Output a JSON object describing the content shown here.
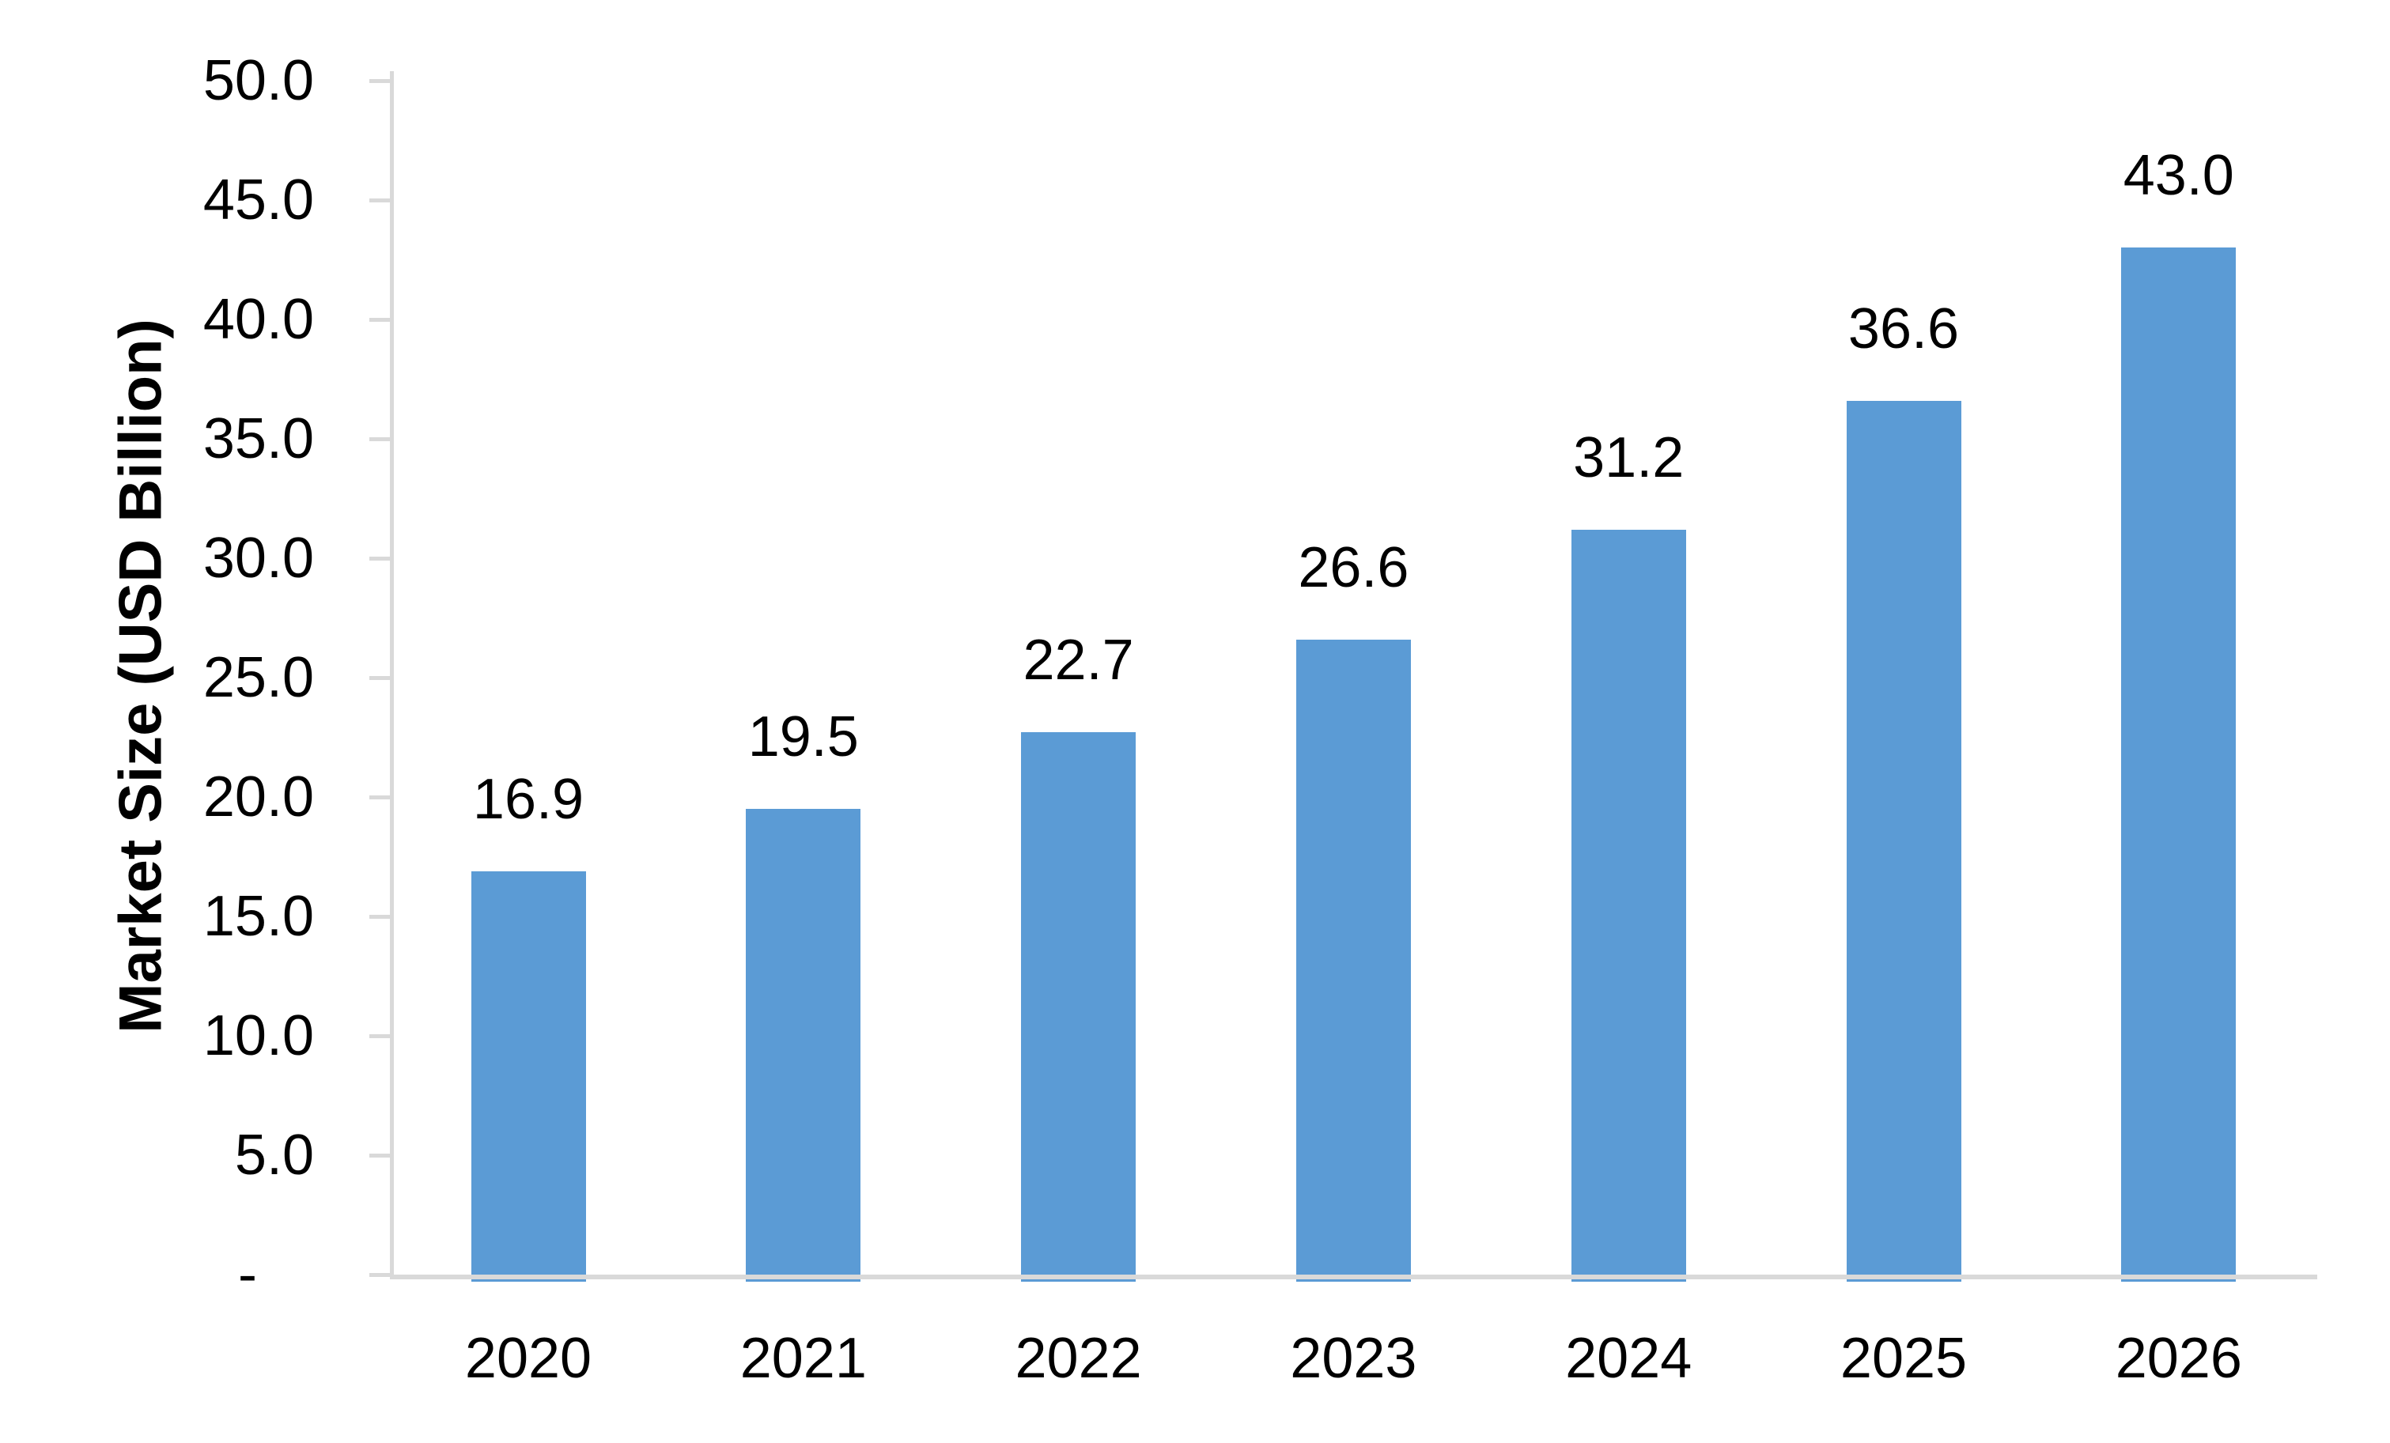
{
  "chart_data": {
    "type": "bar",
    "title": "",
    "xlabel": "",
    "ylabel": "Market Size (USD Billion)",
    "categories": [
      "2020",
      "2021",
      "2022",
      "2023",
      "2024",
      "2025",
      "2026"
    ],
    "values": [
      16.9,
      19.5,
      22.7,
      26.6,
      31.2,
      36.6,
      43.0
    ],
    "data_labels": [
      "16.9",
      "19.5",
      "22.7",
      "26.6",
      "31.2",
      "36.6",
      "43.0"
    ],
    "ylim": [
      0,
      50
    ],
    "ytick_step": 5,
    "yticks": [
      {
        "value": 50,
        "label": "50.0"
      },
      {
        "value": 45,
        "label": "45.0"
      },
      {
        "value": 40,
        "label": "40.0"
      },
      {
        "value": 35,
        "label": "35.0"
      },
      {
        "value": 30,
        "label": "30.0"
      },
      {
        "value": 25,
        "label": "25.0"
      },
      {
        "value": 20,
        "label": "20.0"
      },
      {
        "value": 15,
        "label": "15.0"
      },
      {
        "value": 10,
        "label": "10.0"
      },
      {
        "value": 5,
        "label": "5.0"
      },
      {
        "value": 0,
        "label": "-"
      }
    ],
    "grid": false,
    "legend": "none",
    "colors": {
      "bar_fill": "#5B9BD5",
      "axis_line": "#D9D9D9",
      "text": "#000000",
      "background": "#FFFFFF"
    }
  }
}
